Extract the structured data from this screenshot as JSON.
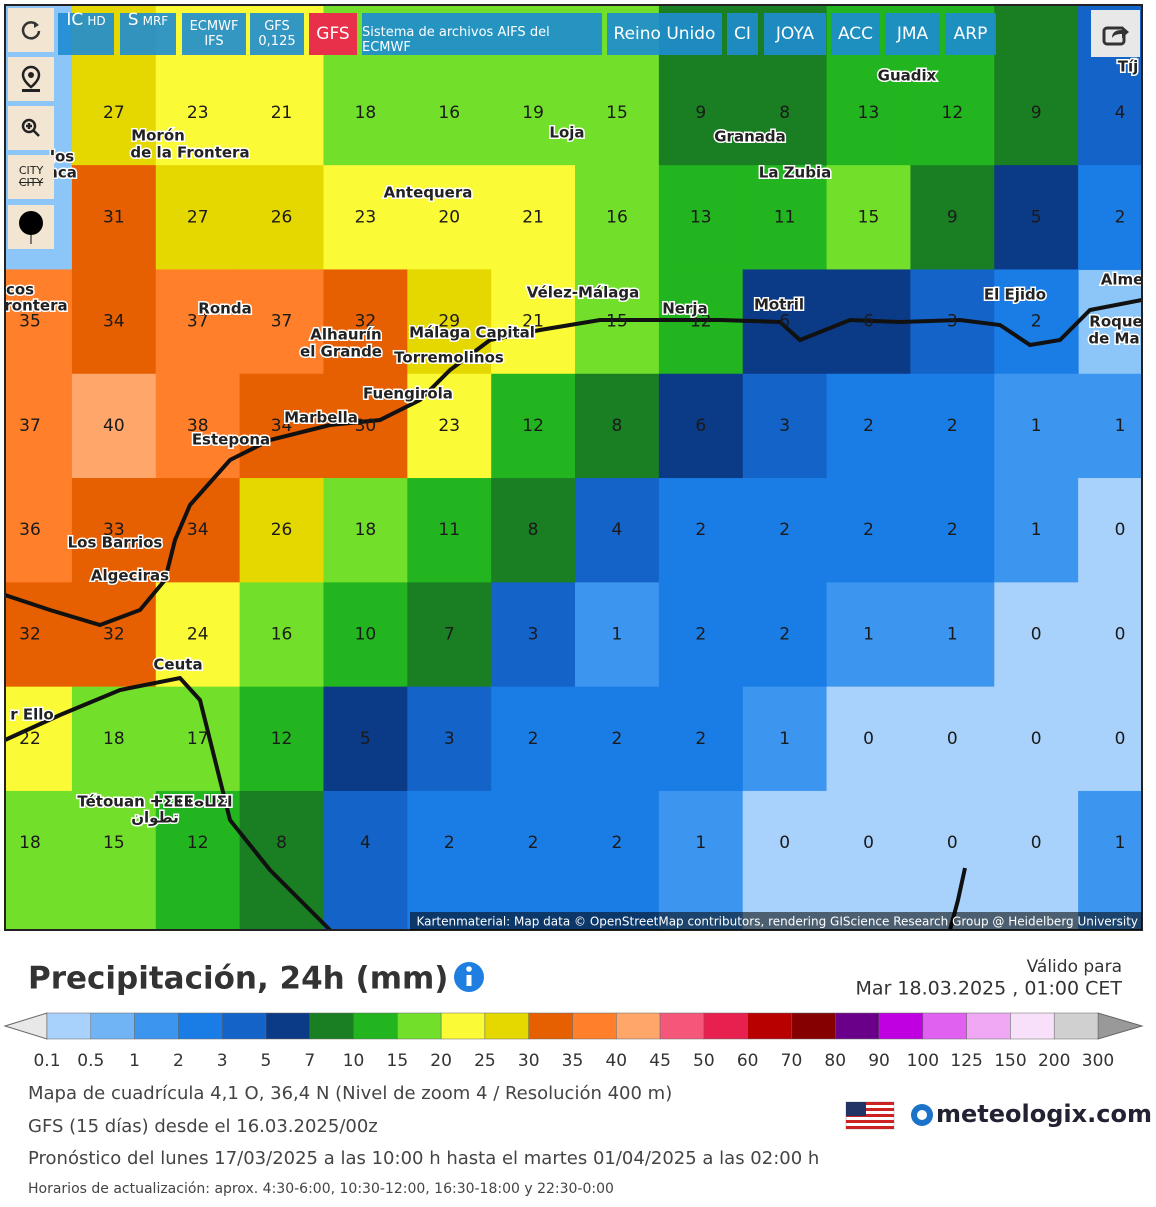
{
  "toolbar": {
    "buttons": [
      [
        "IC",
        "HD"
      ],
      [
        "S",
        "MRF"
      ],
      [
        "ECMWF",
        "IFS"
      ],
      [
        "GFS",
        "0,125"
      ],
      [
        "GFS"
      ],
      [
        "Sistema de archivos AIFS del ECMWF"
      ],
      [
        "Reino Unido"
      ],
      [
        "CI"
      ],
      [
        "JOYA"
      ],
      [
        "ACC"
      ],
      [
        "JMA"
      ],
      [
        "ARP"
      ]
    ],
    "city": [
      "CITY",
      "CITY"
    ]
  },
  "map": {
    "places": [
      "Guadix",
      "Loja",
      "Granada",
      "La Zubia",
      "Morón",
      "de la Frontera",
      "Antequera",
      "Ronda",
      "Vélez-Málaga",
      "Nerja",
      "Motril",
      "El Ejido",
      "Alhaurín",
      "el Grande",
      "Málaga Capital",
      "Torremolinos",
      "Fuengirola",
      "Marbella",
      "Estepona",
      "Los Barrios",
      "Algeciras",
      "Ceuta",
      "Tétouan ⵜⵉⵟⵟⴰⵡⵉⵏ",
      "تطوان",
      "Tíj",
      "Alme",
      "Roque",
      "de Ma",
      "cos",
      "rontera",
      "los",
      "nca",
      "r Ello"
    ],
    "grid": [
      [
        null,
        27,
        23,
        21,
        18,
        16,
        19,
        15,
        9,
        8,
        13,
        12,
        9,
        4
      ],
      [
        null,
        31,
        27,
        26,
        23,
        20,
        21,
        16,
        13,
        11,
        15,
        9,
        5,
        2
      ],
      [
        35,
        34,
        37,
        37,
        32,
        29,
        21,
        15,
        12,
        6,
        6,
        3,
        2,
        null
      ],
      [
        37,
        40,
        38,
        34,
        30,
        23,
        12,
        8,
        6,
        3,
        2,
        2,
        1,
        1
      ],
      [
        36,
        33,
        34,
        26,
        18,
        11,
        8,
        4,
        2,
        2,
        2,
        2,
        1,
        0
      ],
      [
        32,
        32,
        24,
        16,
        10,
        7,
        3,
        1,
        2,
        2,
        1,
        1,
        0,
        0
      ],
      [
        22,
        18,
        17,
        12,
        5,
        3,
        2,
        2,
        2,
        1,
        0,
        0,
        0,
        0
      ],
      [
        18,
        15,
        12,
        8,
        4,
        2,
        2,
        2,
        1,
        0,
        0,
        0,
        0,
        1
      ]
    ],
    "attribution": "Kartenmaterial: Map data © OpenStreetMap contributors, rendering GIScience Research Group @ Heidelberg University"
  },
  "legend": {
    "title": "Precipitación, 24h (mm)",
    "labels": [
      0.1,
      0.5,
      1,
      2,
      3,
      5,
      7,
      10,
      15,
      20,
      25,
      30,
      35,
      40,
      45,
      50,
      60,
      70,
      80,
      90,
      100,
      125,
      150,
      200,
      300
    ],
    "colors": [
      "#a8d2fb",
      "#70b4f5",
      "#3c95ee",
      "#1a7de6",
      "#1463c8",
      "#0b3a86",
      "#1a7f22",
      "#22b51f",
      "#72e02b",
      "#fafa36",
      "#e5d800",
      "#e65f00",
      "#ff7f2a",
      "#ffa66b",
      "#f5577a",
      "#e8204f",
      "#b80000",
      "#850000",
      "#6a008a",
      "#c000e0",
      "#e060f0",
      "#f0a8f5",
      "#f8e0fa",
      "#d0d0d0"
    ],
    "under_color": "#e8e8e8",
    "over_color": "#999999"
  },
  "valid": {
    "label": "Válido para",
    "time": "Mar 18.03.2025 , 01:00 CET"
  },
  "footer": {
    "lines": [
      "Mapa de cuadrícula 4,1 O, 36,4 N (Nivel de zoom 4 / Resolución 400 m)",
      "GFS (15 días) desde el 16.03.2025/00z",
      "Pronóstico del lunes 17/03/2025 a las 10:00 h hasta el martes 01/04/2025 a las 02:00 h"
    ],
    "note": "Horarios de actualización: aprox. 4:30-6:00, 10:30-12:00, 16:30-18:00 y 22:30-0:00",
    "brand": "meteologix.com"
  }
}
